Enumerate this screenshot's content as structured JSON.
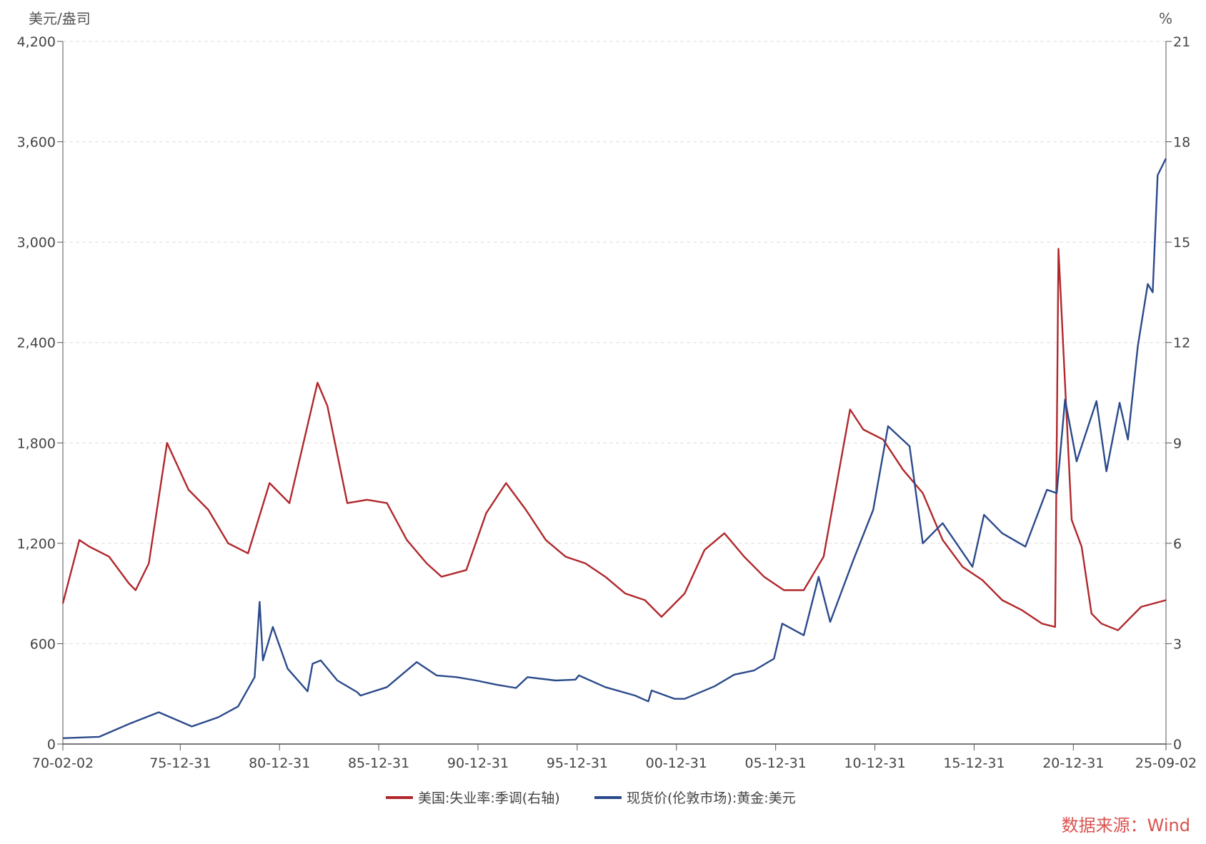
{
  "chart_data": {
    "type": "line",
    "left_unit": "美元/盎司",
    "right_unit": "%",
    "left_ylim": [
      0,
      4200
    ],
    "right_ylim": [
      0,
      21
    ],
    "left_ticks": [
      "0",
      "600",
      "1,200",
      "1,800",
      "2,400",
      "3,000",
      "3,600",
      "4,200"
    ],
    "right_ticks": [
      "0",
      "3",
      "6",
      "9",
      "12",
      "15",
      "18",
      "21"
    ],
    "x_range": [
      "1970-02-02",
      "2025-09-02"
    ],
    "x_ticks": [
      "70-02-02",
      "75-12-31",
      "80-12-31",
      "85-12-31",
      "90-12-31",
      "95-12-31",
      "00-12-31",
      "05-12-31",
      "10-12-31",
      "15-12-31",
      "20-12-31",
      "25-09-02"
    ],
    "grid": "horizontal dashed",
    "legend_position": "bottom",
    "source": "数据来源：Wind",
    "series": [
      {
        "name": "美国:失业率:季调(右轴)",
        "axis": "right",
        "color": "#b0282c",
        "points": [
          [
            "1970-02",
            4.2
          ],
          [
            "1970-12",
            6.1
          ],
          [
            "1971-06",
            5.9
          ],
          [
            "1972-06",
            5.6
          ],
          [
            "1973-06",
            4.8
          ],
          [
            "1973-10",
            4.6
          ],
          [
            "1974-06",
            5.4
          ],
          [
            "1975-05",
            9.0
          ],
          [
            "1976-06",
            7.6
          ],
          [
            "1977-06",
            7.0
          ],
          [
            "1978-06",
            6.0
          ],
          [
            "1979-06",
            5.7
          ],
          [
            "1980-07",
            7.8
          ],
          [
            "1981-07",
            7.2
          ],
          [
            "1982-12",
            10.8
          ],
          [
            "1983-06",
            10.1
          ],
          [
            "1984-06",
            7.2
          ],
          [
            "1985-06",
            7.3
          ],
          [
            "1986-06",
            7.2
          ],
          [
            "1987-06",
            6.1
          ],
          [
            "1988-06",
            5.4
          ],
          [
            "1989-03",
            5.0
          ],
          [
            "1990-06",
            5.2
          ],
          [
            "1991-06",
            6.9
          ],
          [
            "1992-06",
            7.8
          ],
          [
            "1993-06",
            7.0
          ],
          [
            "1994-06",
            6.1
          ],
          [
            "1995-06",
            5.6
          ],
          [
            "1996-06",
            5.4
          ],
          [
            "1997-06",
            5.0
          ],
          [
            "1998-06",
            4.5
          ],
          [
            "1999-06",
            4.3
          ],
          [
            "2000-04",
            3.8
          ],
          [
            "2001-06",
            4.5
          ],
          [
            "2002-06",
            5.8
          ],
          [
            "2003-06",
            6.3
          ],
          [
            "2004-06",
            5.6
          ],
          [
            "2005-06",
            5.0
          ],
          [
            "2006-06",
            4.6
          ],
          [
            "2007-06",
            4.6
          ],
          [
            "2008-06",
            5.6
          ],
          [
            "2009-10",
            10.0
          ],
          [
            "2010-06",
            9.4
          ],
          [
            "2011-06",
            9.1
          ],
          [
            "2012-06",
            8.2
          ],
          [
            "2013-06",
            7.5
          ],
          [
            "2014-06",
            6.1
          ],
          [
            "2015-06",
            5.3
          ],
          [
            "2016-06",
            4.9
          ],
          [
            "2017-06",
            4.3
          ],
          [
            "2018-06",
            4.0
          ],
          [
            "2019-06",
            3.6
          ],
          [
            "2020-02",
            3.5
          ],
          [
            "2020-04",
            14.8
          ],
          [
            "2020-12",
            6.7
          ],
          [
            "2021-06",
            5.9
          ],
          [
            "2021-12",
            3.9
          ],
          [
            "2022-06",
            3.6
          ],
          [
            "2023-04",
            3.4
          ],
          [
            "2024-06",
            4.1
          ],
          [
            "2025-09",
            4.3
          ]
        ]
      },
      {
        "name": "现货价(伦敦市场):黄金:美元",
        "axis": "left",
        "color": "#2b4a8b",
        "points": [
          [
            "1970-02",
            35
          ],
          [
            "1971-12",
            43
          ],
          [
            "1973-06",
            120
          ],
          [
            "1974-12",
            190
          ],
          [
            "1976-08",
            105
          ],
          [
            "1977-12",
            160
          ],
          [
            "1978-12",
            225
          ],
          [
            "1979-10",
            400
          ],
          [
            "1980-01",
            850
          ],
          [
            "1980-03",
            500
          ],
          [
            "1980-09",
            700
          ],
          [
            "1981-06",
            450
          ],
          [
            "1982-06",
            315
          ],
          [
            "1982-09",
            480
          ],
          [
            "1983-02",
            500
          ],
          [
            "1983-12",
            380
          ],
          [
            "1984-12",
            310
          ],
          [
            "1985-02",
            290
          ],
          [
            "1986-06",
            340
          ],
          [
            "1987-12",
            490
          ],
          [
            "1988-12",
            410
          ],
          [
            "1989-12",
            400
          ],
          [
            "1990-12",
            380
          ],
          [
            "1991-12",
            355
          ],
          [
            "1992-12",
            335
          ],
          [
            "1993-07",
            400
          ],
          [
            "1994-12",
            380
          ],
          [
            "1995-12",
            385
          ],
          [
            "1996-02",
            410
          ],
          [
            "1997-06",
            340
          ],
          [
            "1998-12",
            290
          ],
          [
            "1999-08",
            255
          ],
          [
            "1999-10",
            320
          ],
          [
            "2000-12",
            270
          ],
          [
            "2001-06",
            270
          ],
          [
            "2002-12",
            345
          ],
          [
            "2003-12",
            415
          ],
          [
            "2004-12",
            440
          ],
          [
            "2005-12",
            510
          ],
          [
            "2006-05",
            720
          ],
          [
            "2007-06",
            650
          ],
          [
            "2008-03",
            1000
          ],
          [
            "2008-10",
            730
          ],
          [
            "2009-12",
            1100
          ],
          [
            "2010-12",
            1400
          ],
          [
            "2011-09",
            1900
          ],
          [
            "2012-10",
            1780
          ],
          [
            "2013-06",
            1200
          ],
          [
            "2014-06",
            1320
          ],
          [
            "2015-12",
            1060
          ],
          [
            "2016-07",
            1370
          ],
          [
            "2017-06",
            1260
          ],
          [
            "2018-08",
            1180
          ],
          [
            "2019-09",
            1520
          ],
          [
            "2020-03",
            1500
          ],
          [
            "2020-08",
            2060
          ],
          [
            "2021-03",
            1690
          ],
          [
            "2022-03",
            2050
          ],
          [
            "2022-09",
            1630
          ],
          [
            "2023-05",
            2040
          ],
          [
            "2023-10",
            1820
          ],
          [
            "2024-04",
            2380
          ],
          [
            "2024-10",
            2750
          ],
          [
            "2025-01",
            2700
          ],
          [
            "2025-04",
            3400
          ],
          [
            "2025-09",
            3500
          ]
        ]
      }
    ]
  }
}
